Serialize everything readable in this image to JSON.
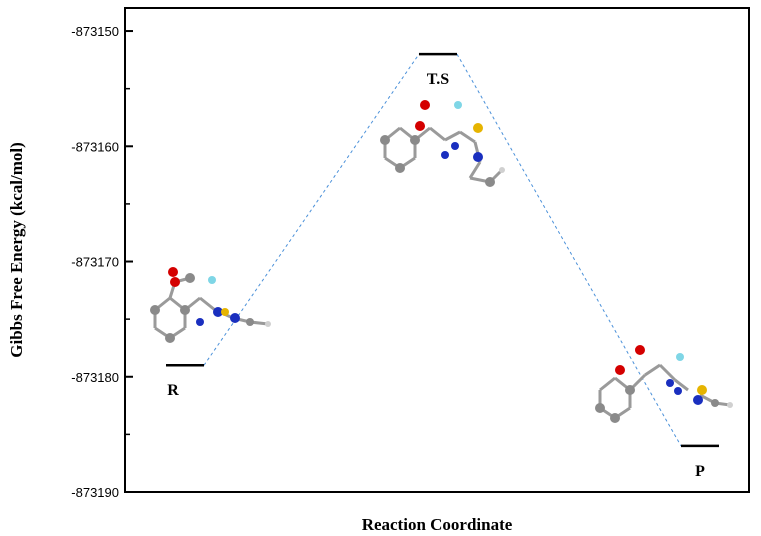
{
  "chart_data": {
    "type": "line",
    "title": "",
    "xlabel": "Reaction Coordinate",
    "ylabel": "Gibbs Free Energy (kcal/mol)",
    "ylim": [
      -873190,
      -873148
    ],
    "yticks": [
      -873150,
      -873160,
      -873170,
      -873180,
      -873190
    ],
    "ytick_labels": [
      "-873150",
      "-873160",
      "-873170",
      "-873180",
      "-873190"
    ],
    "grid": false,
    "series": [
      {
        "name": "energy profile",
        "states": [
          {
            "label": "R",
            "position": 1,
            "energy": -873179
          },
          {
            "label": "T.S",
            "position": 2,
            "energy": -873152
          },
          {
            "label": "P",
            "position": 3,
            "energy": -873186
          }
        ]
      }
    ],
    "colors": {
      "level": "#000000",
      "connector": "#4a90d9",
      "oxygen": "#d40000",
      "nitrogen": "#1a2fbf",
      "sulfur": "#e6b400",
      "fluorine": "#7fd6e6",
      "carbon": "#8a8a8a",
      "hydrogen": "#e8e8e8"
    }
  }
}
